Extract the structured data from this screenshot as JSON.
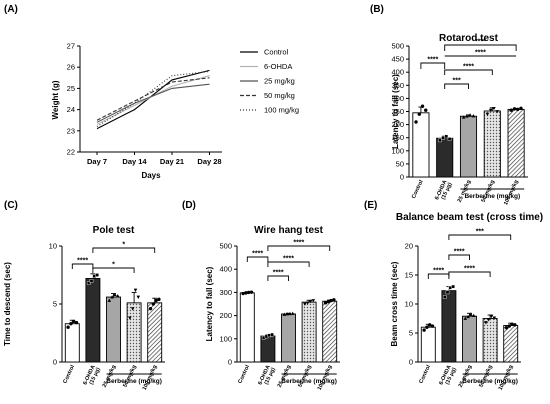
{
  "panels": {
    "A": "(A)",
    "B": "(B)",
    "C": "(C)",
    "D": "(D)",
    "E": "(E)"
  },
  "chart_data": [
    {
      "id": "A",
      "type": "line",
      "xlabel": "Days",
      "ylabel": "Weight (g)",
      "categories": [
        "Day 7",
        "Day 14",
        "Day 21",
        "Day 28"
      ],
      "ylim": [
        22,
        27
      ],
      "yticks": [
        22,
        23,
        24,
        25,
        26,
        27
      ],
      "legend_position": "right",
      "series": [
        {
          "name": "Control",
          "values": [
            23.1,
            24.0,
            25.4,
            25.85
          ],
          "dash": "",
          "color": "#000000"
        },
        {
          "name": "6-OHDA",
          "values": [
            23.3,
            24.2,
            25.1,
            25.6
          ],
          "dash": "",
          "color": "#b3b3b3"
        },
        {
          "name": "25 mg/kg",
          "values": [
            23.4,
            24.3,
            25.0,
            25.2
          ],
          "dash": "",
          "color": "#555555"
        },
        {
          "name": "50 mg/kg",
          "values": [
            23.5,
            24.4,
            25.3,
            25.5
          ],
          "dash": "4,2",
          "color": "#333333"
        },
        {
          "name": "100 mg/kg",
          "values": [
            23.2,
            24.3,
            25.6,
            25.8
          ],
          "dash": "1,2",
          "color": "#333333"
        }
      ]
    },
    {
      "id": "B",
      "type": "bar",
      "title": "Rotarod test",
      "ylabel": "Latency to fall (sec)",
      "categories": [
        "Control",
        "6-OHDA (15 μg)",
        "25 mg/kg",
        "50 mg/kg",
        "100 mg/kg"
      ],
      "values": [
        245,
        148,
        232,
        252,
        258
      ],
      "errors": [
        22,
        8,
        5,
        12,
        4
      ],
      "ylim": [
        0,
        500
      ],
      "yticks": [
        0,
        50,
        100,
        150,
        200,
        250,
        300,
        350,
        400,
        450,
        500
      ],
      "group_label": "Berberine (mg/kg)",
      "points": [
        [
          210,
          240,
          270,
          255
        ],
        [
          140,
          150,
          155,
          145
        ],
        [
          228,
          232,
          236,
          233
        ],
        [
          240,
          255,
          262,
          250
        ],
        [
          255,
          260,
          258,
          262
        ]
      ],
      "significance": [
        "****",
        "****",
        "***",
        "****",
        "****"
      ]
    },
    {
      "id": "C",
      "type": "bar",
      "title": "Pole test",
      "ylabel": "Time to descend (sec)",
      "categories": [
        "Control",
        "6-OHDA (15 μg)",
        "25 mg/kg",
        "50 mg/kg",
        "100 mg/kg"
      ],
      "values": [
        3.3,
        7.2,
        5.6,
        5.1,
        5.1
      ],
      "errors": [
        0.3,
        0.4,
        0.3,
        0.9,
        0.4
      ],
      "ylim": [
        0,
        10
      ],
      "yticks": [
        0,
        5,
        10
      ],
      "group_label": "Berberine (mg/kg)",
      "points": [
        [
          3.0,
          3.3,
          3.5,
          3.4
        ],
        [
          6.8,
          7.0,
          7.4,
          7.5
        ],
        [
          5.3,
          5.6,
          5.8,
          5.7
        ],
        [
          3.8,
          4.6,
          6.2,
          5.6
        ],
        [
          4.6,
          5.0,
          5.3,
          5.4
        ]
      ],
      "significance": [
        "****",
        "*",
        "*"
      ]
    },
    {
      "id": "D",
      "type": "bar",
      "title": "Wire hang test",
      "ylabel": "Latency to fall (sec)",
      "categories": [
        "Control",
        "6-OHDA (15 μg)",
        "25 mg/kg",
        "50 mg/kg",
        "100 mg/kg"
      ],
      "values": [
        298,
        112,
        207,
        258,
        262
      ],
      "errors": [
        4,
        6,
        3,
        8,
        5
      ],
      "ylim": [
        0,
        500
      ],
      "yticks": [
        0,
        100,
        200,
        300,
        400,
        500
      ],
      "group_label": "Berberine (mg/kg)",
      "points": [
        [
          295,
          298,
          300,
          301
        ],
        [
          105,
          110,
          115,
          118
        ],
        [
          205,
          207,
          208,
          209
        ],
        [
          250,
          255,
          262,
          265
        ],
        [
          255,
          260,
          265,
          268
        ]
      ],
      "significance": [
        "****",
        "****",
        "****",
        "****"
      ]
    },
    {
      "id": "E",
      "type": "bar",
      "title": "Balance beam test (cross time)",
      "ylabel": "Beam cross time (sec)",
      "categories": [
        "Control",
        "6-OHDA (15 μg)",
        "25 mg/kg",
        "50 mg/kg",
        "100 mg/kg"
      ],
      "values": [
        6.0,
        12.3,
        7.9,
        7.5,
        6.3
      ],
      "errors": [
        0.5,
        0.7,
        0.5,
        0.6,
        0.4
      ],
      "ylim": [
        0,
        20
      ],
      "yticks": [
        0,
        5,
        10,
        15,
        20
      ],
      "group_label": "Berberine (mg/kg)",
      "points": [
        [
          5.5,
          6.0,
          6.4,
          6.2
        ],
        [
          11.2,
          12.0,
          12.8,
          13.0
        ],
        [
          7.5,
          7.8,
          8.2,
          8.0
        ],
        [
          6.8,
          7.3,
          7.9,
          7.6
        ],
        [
          5.9,
          6.2,
          6.5,
          6.4
        ]
      ],
      "significance": [
        "****",
        "***",
        "****",
        "****"
      ]
    }
  ]
}
